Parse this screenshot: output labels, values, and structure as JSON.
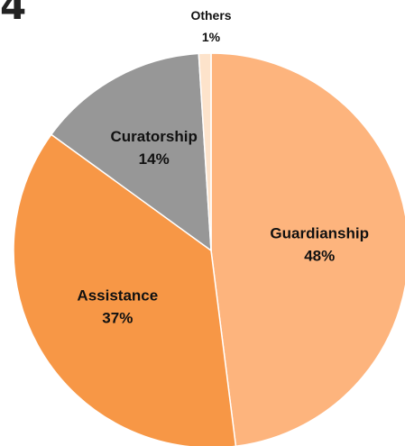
{
  "figure_number": "4",
  "chart_data": {
    "type": "pie",
    "title": "",
    "slices": [
      {
        "label": "Guardianship",
        "value": 48,
        "display": "48%",
        "color": "#FDB47D"
      },
      {
        "label": "Assistance",
        "value": 37,
        "display": "37%",
        "color": "#F79746"
      },
      {
        "label": "Curatorship",
        "value": 14,
        "display": "14%",
        "color": "#979797"
      },
      {
        "label": "Others",
        "value": 1,
        "display": "1%",
        "color": "#FDE3CB"
      }
    ],
    "start_angle_deg": 0,
    "direction": "clockwise",
    "legend": "none"
  }
}
